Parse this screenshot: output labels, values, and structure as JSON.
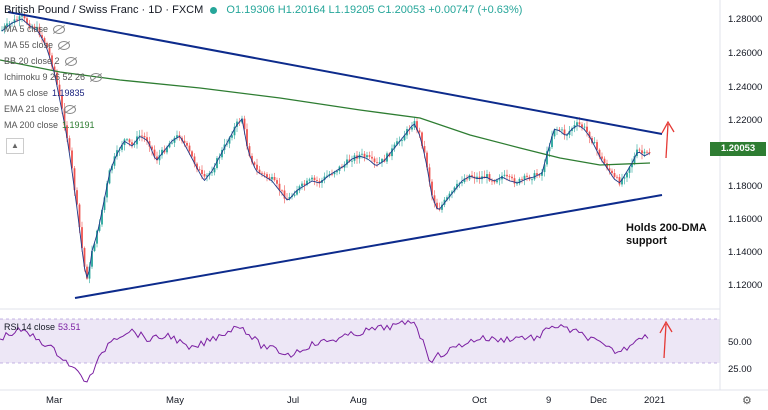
{
  "header": {
    "symbol": "British Pound / Swiss Franc · 1D · FXCM",
    "ohlc": "O1.19306 H1.20164 L1.19205 C1.20053 +0.00747 (+0.63%)"
  },
  "indicators": [
    {
      "label": "MA 5 close",
      "value": ""
    },
    {
      "label": "MA 55 close",
      "value": ""
    },
    {
      "label": "BB 20 close 2",
      "value": ""
    },
    {
      "label": "Ichimoku 9 26 52 26",
      "value": ""
    },
    {
      "label": "MA 5 close",
      "value": "1.19835"
    },
    {
      "label": "EMA 21 close",
      "value": ""
    },
    {
      "label": "MA 200 close",
      "value": "1.19191"
    }
  ],
  "rsi": {
    "label": "RSI 14 close",
    "value": "53.51"
  },
  "price_tag": "1.20053",
  "annotation": {
    "line1": "Holds 200-DMA",
    "line2": "support"
  },
  "y_axis": [
    "1.28000",
    "1.26000",
    "1.24000",
    "1.22000",
    "1.18000",
    "1.16000",
    "1.14000",
    "1.12000"
  ],
  "rsi_axis": [
    "50.00",
    "25.00"
  ],
  "x_axis": [
    "Mar",
    "May",
    "Jul",
    "Aug",
    "Oct",
    "9",
    "Dec",
    "2021"
  ],
  "colors": {
    "up": "#26a69a",
    "down": "#ef5350",
    "ma5": "#1e3a8a",
    "ma200": "#2e7d32",
    "trend": "#0d2b8c",
    "rsi": "#7b1fa2",
    "rsi_band": "#ede7f6",
    "arrow": "#e53935"
  },
  "chart_data": {
    "type": "candlestick",
    "title": "British Pound / Swiss Franc · 1D · FXCM",
    "ylim": [
      1.105,
      1.29
    ],
    "close": 1.20053
  }
}
